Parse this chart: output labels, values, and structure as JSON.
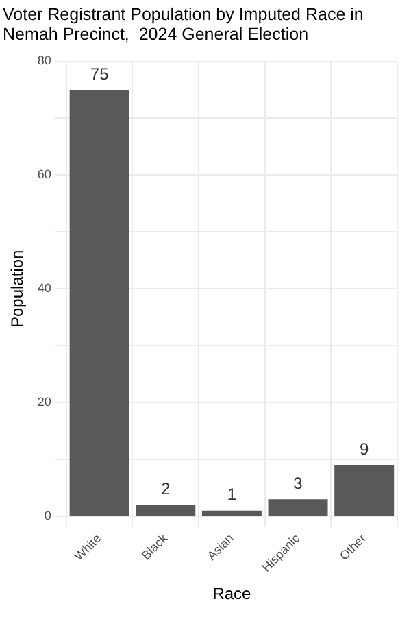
{
  "chart_data": {
    "type": "bar",
    "title": "Voter Registrant Population by Imputed Race in\nNemah Precinct,  2024 General Election",
    "xlabel": "Race",
    "ylabel": "Population",
    "categories": [
      "White",
      "Black",
      "Asian",
      "Hispanic",
      "Other"
    ],
    "values": [
      75,
      2,
      1,
      3,
      9
    ],
    "color": "#595959",
    "data_labels": true,
    "ylim": [
      0,
      80
    ],
    "yticks": [
      0,
      {
        "value": 10,
        "label": null
      },
      20,
      {
        "value": 30,
        "label": null
      },
      40,
      {
        "value": 50,
        "label": null
      },
      60,
      {
        "value": 70,
        "label": null
      },
      80
    ],
    "grid": true
  }
}
